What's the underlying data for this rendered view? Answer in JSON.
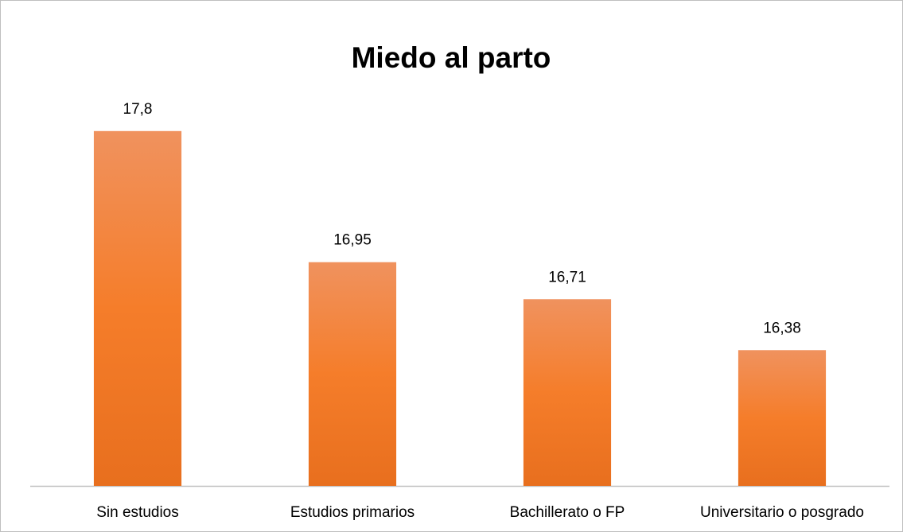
{
  "chart_data": {
    "type": "bar",
    "title": "Miedo al parto",
    "categories": [
      "Sin estudios",
      "Estudios primarios",
      "Bachillerato o FP",
      "Universitario o posgrado"
    ],
    "values": [
      17.8,
      16.95,
      16.71,
      16.38
    ],
    "value_labels": [
      "17,8",
      "16,95",
      "16,71",
      "16,38"
    ],
    "color": "#ed7d31",
    "ylim": [
      15.5,
      18
    ]
  }
}
